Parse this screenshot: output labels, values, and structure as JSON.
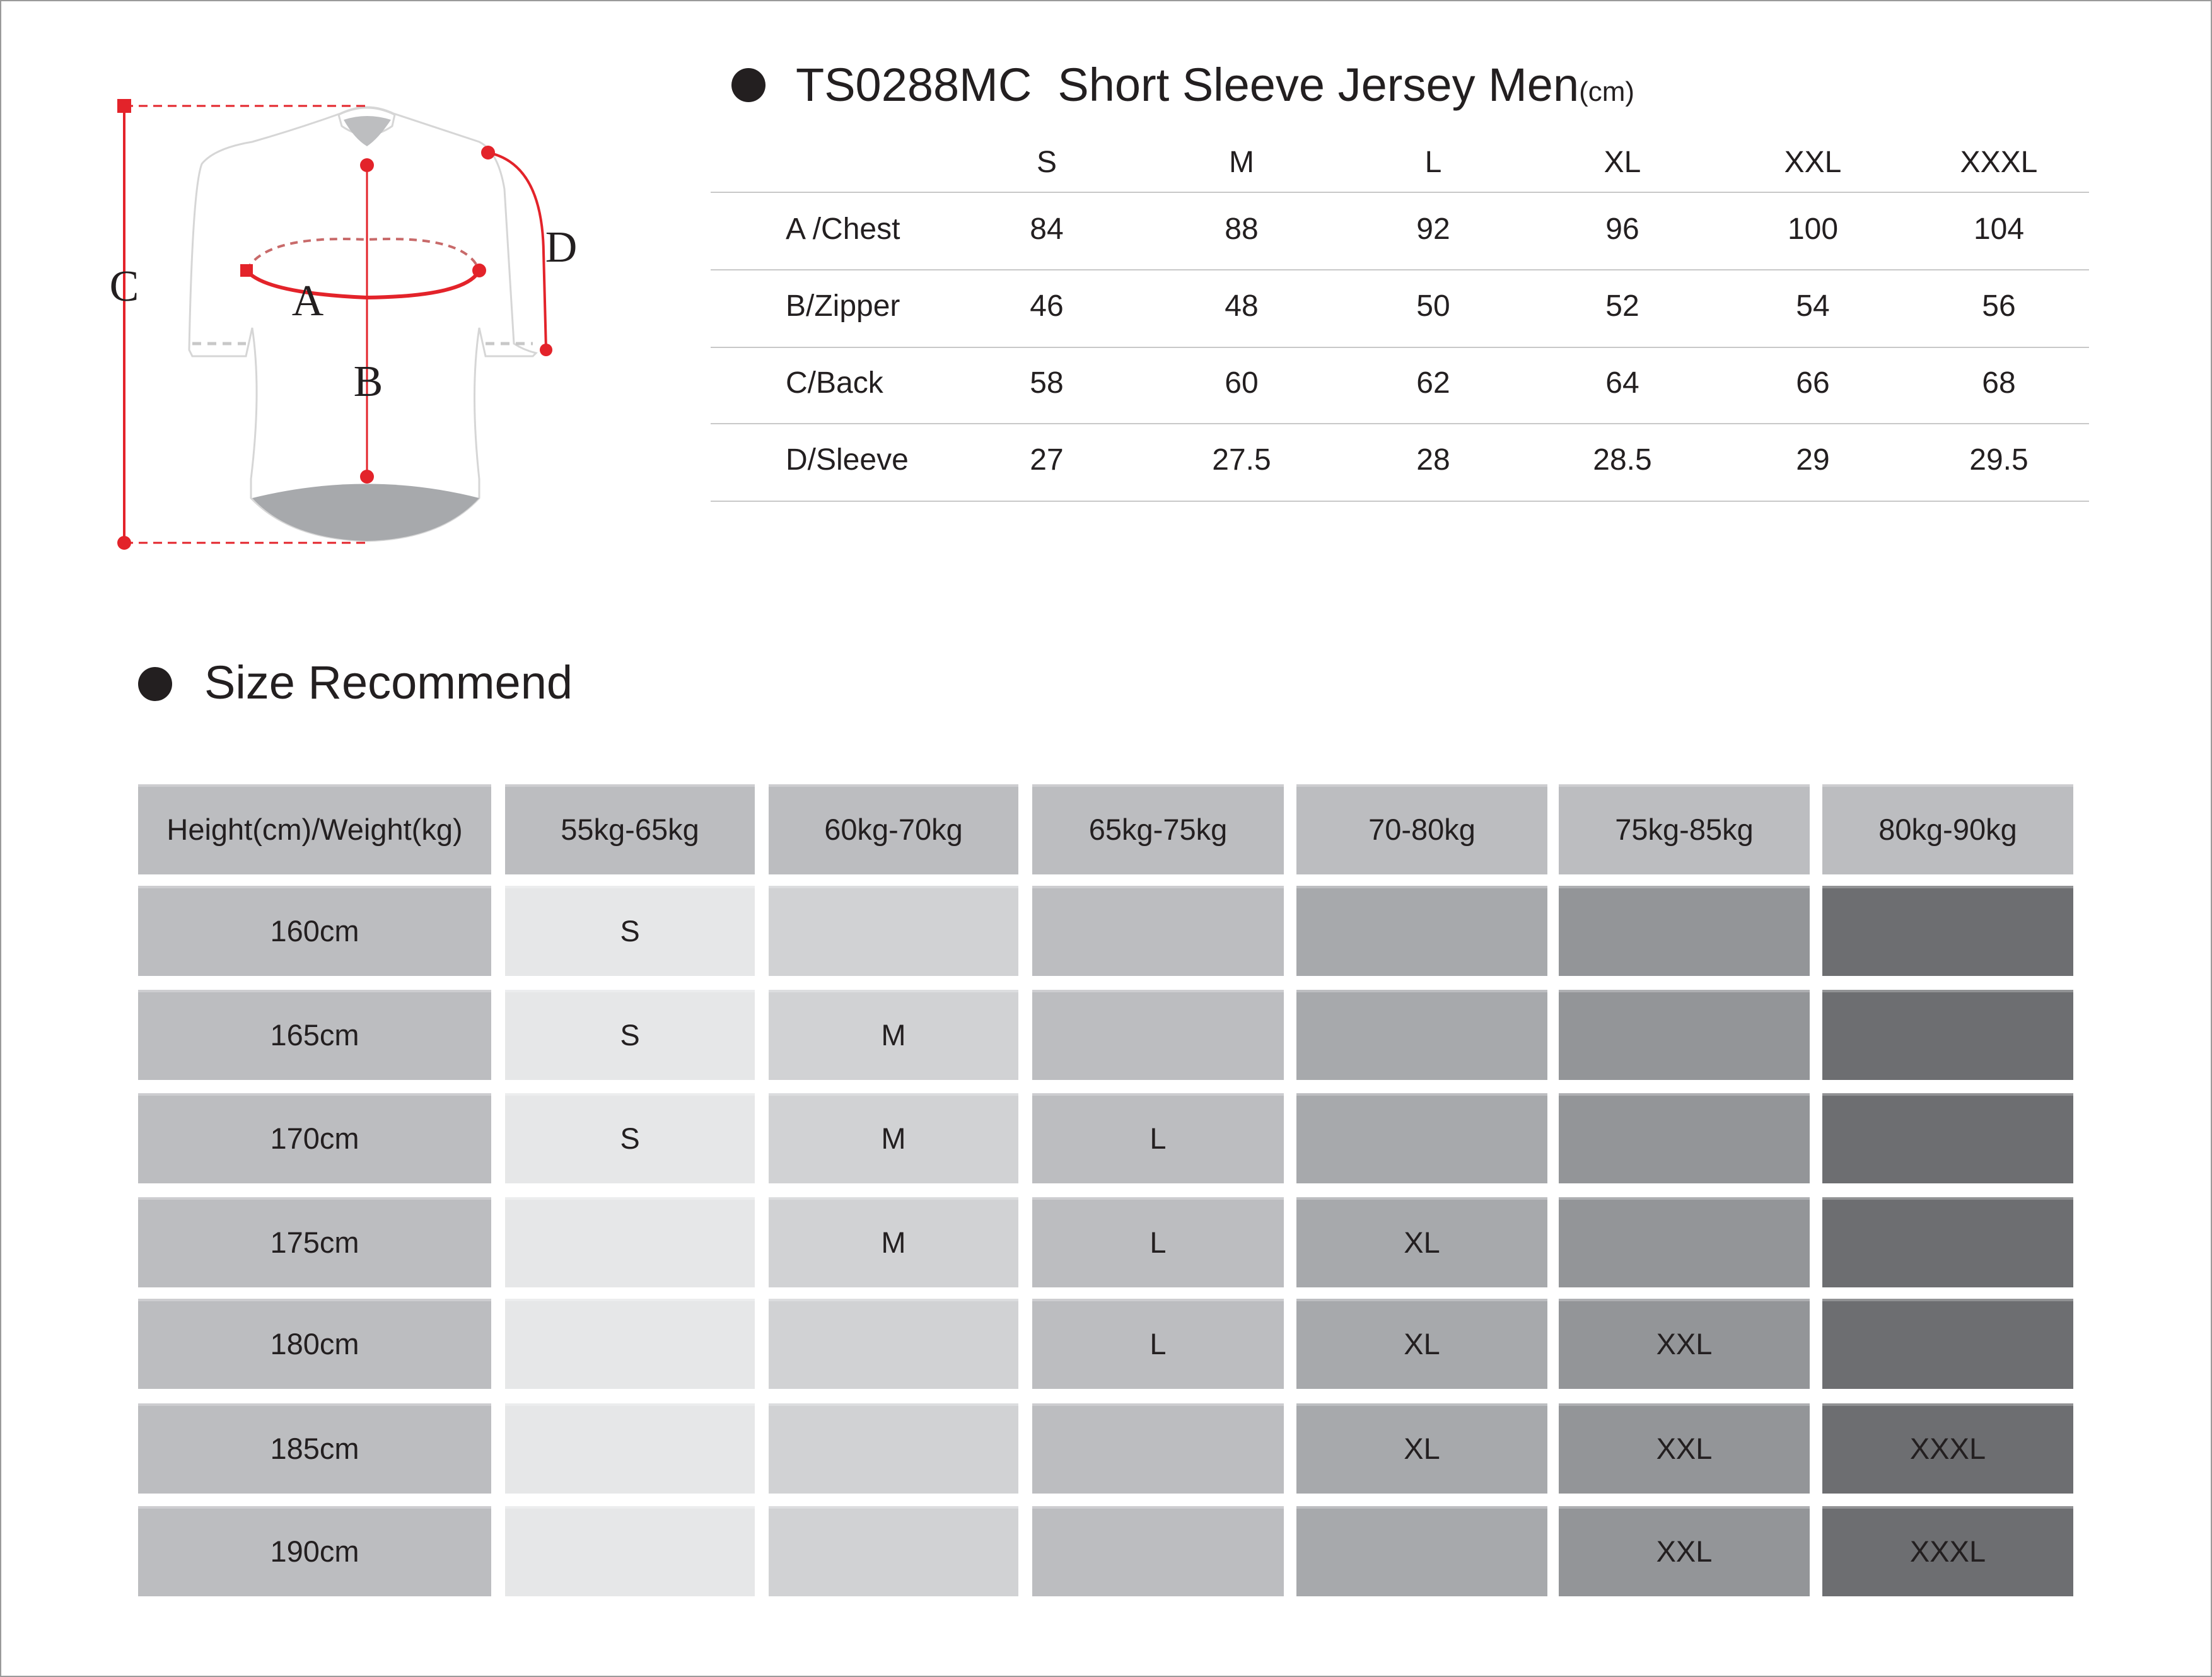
{
  "diagram": {
    "labels": {
      "a": "A",
      "b": "B",
      "c": "C",
      "d": "D"
    },
    "accent": "#e3232a"
  },
  "measure_table": {
    "model": "TS0288MC",
    "title": "Short Sleeve Jersey Men",
    "unit": "(cm)",
    "sizes": [
      "S",
      "M",
      "L",
      "XL",
      "XXL",
      "XXXL"
    ],
    "rows": [
      {
        "label": "A /Chest",
        "values": [
          "84",
          "88",
          "92",
          "96",
          "100",
          "104"
        ]
      },
      {
        "label": "B/Zipper",
        "values": [
          "46",
          "48",
          "50",
          "52",
          "54",
          "56"
        ]
      },
      {
        "label": "C/Back",
        "values": [
          "58",
          "60",
          "62",
          "64",
          "66",
          "68"
        ]
      },
      {
        "label": "D/Sleeve",
        "values": [
          "27",
          "27.5",
          "28",
          "28.5",
          "29",
          "29.5"
        ]
      }
    ]
  },
  "recommend": {
    "title": "Size Recommend",
    "corner": "Height(cm)/Weight(kg)",
    "weights": [
      "55kg-65kg",
      "60kg-70kg",
      "65kg-75kg",
      "70-80kg",
      "75kg-85kg",
      "80kg-90kg"
    ],
    "column_colors": [
      "#e6e7e8",
      "#d1d2d4",
      "#bcbdc0",
      "#a7a9ac",
      "#939598",
      "#6d6e71"
    ],
    "header_color": "#bcbdc0",
    "rows": [
      {
        "height": "160cm",
        "cells": [
          "S",
          "",
          "",
          "",
          "",
          ""
        ]
      },
      {
        "height": "165cm",
        "cells": [
          "S",
          "M",
          "",
          "",
          "",
          ""
        ]
      },
      {
        "height": "170cm",
        "cells": [
          "S",
          "M",
          "L",
          "",
          "",
          ""
        ]
      },
      {
        "height": "175cm",
        "cells": [
          "",
          "M",
          "L",
          "XL",
          "",
          ""
        ]
      },
      {
        "height": "180cm",
        "cells": [
          "",
          "",
          "L",
          "XL",
          "XXL",
          ""
        ]
      },
      {
        "height": "185cm",
        "cells": [
          "",
          "",
          "",
          "XL",
          "XXL",
          "XXXL"
        ]
      },
      {
        "height": "190cm",
        "cells": [
          "",
          "",
          "",
          "",
          "XXL",
          "XXXL"
        ]
      }
    ]
  }
}
